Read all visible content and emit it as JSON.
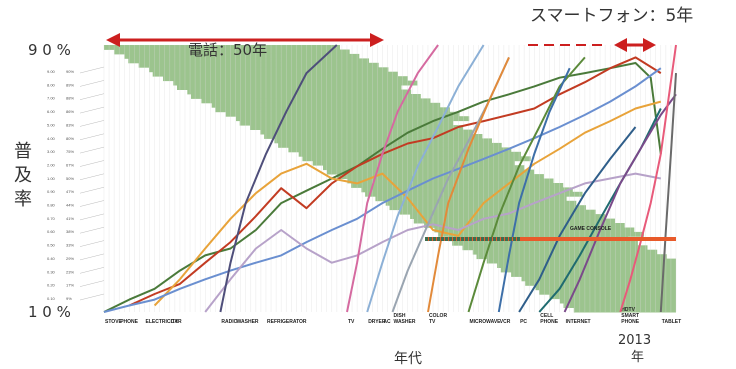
{
  "headline": {
    "smartphone_label": "スマートフォン：5年",
    "phone_label": "電話：50年"
  },
  "axes": {
    "y_title_chars": [
      "普",
      "及",
      "率"
    ],
    "y_top_label": "9 0 %",
    "y_bottom_label": "1 0 %",
    "x_title": "年代",
    "year_label": "2013",
    "year_suffix": "年"
  },
  "colors": {
    "band": "#9cc48e",
    "arrow": "#cc1f1f",
    "grid": "#d9d9d9"
  },
  "chart_data": {
    "type": "line",
    "title": "",
    "xlabel": "年代",
    "ylabel": "普及率",
    "y_scale": "logit",
    "ylim": [
      10,
      90
    ],
    "left_scale_ticks": [
      "9.00",
      "8.00",
      "7.00",
      "6.00",
      "5.00",
      "4.00",
      "3.00",
      "2.00",
      "1.00",
      "0.90",
      "0.80",
      "0.70",
      "0.60",
      "0.50",
      "0.40",
      "0.30",
      "0.20",
      "0.10"
    ],
    "right_scale_ticks": [
      "90%",
      "89%",
      "88%",
      "86%",
      "83%",
      "80%",
      "75%",
      "67%",
      "50%",
      "47%",
      "44%",
      "41%",
      "38%",
      "33%",
      "29%",
      "23%",
      "17%",
      "9%"
    ],
    "categories": [
      {
        "label": "STOVE",
        "year": 1900
      },
      {
        "label": "PHONE",
        "year": 1903
      },
      {
        "label": "ELECTRICITY",
        "year": 1908
      },
      {
        "label": "CAR",
        "year": 1913
      },
      {
        "label": "RADIO",
        "year": 1923
      },
      {
        "label": "WASHER",
        "year": 1926
      },
      {
        "label": "REFRIGERATOR",
        "year": 1932
      },
      {
        "label": "TV",
        "year": 1948
      },
      {
        "label": "DRYER",
        "year": 1952
      },
      {
        "label": "AC",
        "year": 1955
      },
      {
        "label": "DISH WASHER",
        "year": 1957
      },
      {
        "label": "COLOR TV",
        "year": 1964
      },
      {
        "label": "MICROWAVE",
        "year": 1972
      },
      {
        "label": "VCR",
        "year": 1978
      },
      {
        "label": "PC",
        "year": 1982
      },
      {
        "label": "CELL PHONE",
        "year": 1986
      },
      {
        "label": "INTERNET",
        "year": 1991
      },
      {
        "label": "HDTV SMART PHONE",
        "year": 2002
      },
      {
        "label": "TABLET",
        "year": 2010
      },
      {
        "label": "GAME CONSOLE",
        "year": 1994
      }
    ],
    "annotations": [
      {
        "text": "電話：50年",
        "from_year": 1900,
        "to_year": 1950
      },
      {
        "text": "スマートフォン：5年",
        "from_year": 2008,
        "to_year": 2013
      }
    ],
    "series": [
      {
        "color": "#4a7a3a",
        "x": [
          1900,
          1905,
          1910,
          1915,
          1920,
          1925,
          1930,
          1935,
          1940,
          1945,
          1950,
          1955,
          1960,
          1965,
          1970,
          1975,
          1980,
          1985,
          1990,
          1995,
          2000,
          2005,
          2008,
          2010
        ],
        "y": [
          10,
          12,
          14,
          18,
          22,
          24,
          30,
          40,
          45,
          50,
          55,
          62,
          68,
          72,
          75,
          78,
          80,
          82,
          84,
          85,
          86,
          87,
          84,
          60
        ]
      },
      {
        "color": "#c23b22",
        "x": [
          1905,
          1910,
          1915,
          1920,
          1925,
          1930,
          1935,
          1940,
          1945,
          1950,
          1955,
          1960,
          1965,
          1970,
          1975,
          1980,
          1985,
          1990,
          1995,
          2000,
          2005,
          2010
        ],
        "y": [
          11,
          13,
          15,
          20,
          26,
          35,
          46,
          38,
          48,
          55,
          60,
          64,
          66,
          70,
          72,
          74,
          76,
          80,
          83,
          86,
          88,
          85
        ]
      },
      {
        "color": "#e8a33a",
        "x": [
          1910,
          1915,
          1920,
          1925,
          1930,
          1935,
          1940,
          1945,
          1950,
          1955,
          1960,
          1965,
          1970,
          1975,
          1980,
          1985,
          1990,
          1995,
          2000,
          2005,
          2010
        ],
        "y": [
          11,
          16,
          24,
          34,
          44,
          52,
          56,
          50,
          48,
          52,
          42,
          30,
          28,
          40,
          48,
          56,
          62,
          68,
          72,
          76,
          78
        ]
      },
      {
        "color": "#6a8fd0",
        "x": [
          1900,
          1905,
          1910,
          1915,
          1920,
          1925,
          1930,
          1935,
          1940,
          1945,
          1950,
          1955,
          1960,
          1965,
          1970,
          1975,
          1980,
          1985,
          1990,
          1995,
          2000,
          2005,
          2010
        ],
        "y": [
          10,
          11,
          12,
          14,
          16,
          18,
          20,
          22,
          26,
          30,
          34,
          40,
          45,
          50,
          54,
          58,
          62,
          66,
          70,
          74,
          78,
          82,
          86
        ]
      },
      {
        "color": "#b7a2c9",
        "x": [
          1920,
          1925,
          1930,
          1935,
          1940,
          1945,
          1950,
          1955,
          1960,
          1965,
          1970,
          1975,
          1980,
          1985,
          1990,
          1995,
          2000,
          2005,
          2010
        ],
        "y": [
          10,
          16,
          24,
          30,
          24,
          20,
          22,
          26,
          30,
          32,
          30,
          34,
          36,
          40,
          44,
          48,
          50,
          52,
          50
        ]
      },
      {
        "color": "#4e4e7a",
        "x": [
          1923,
          1925,
          1928,
          1932,
          1936,
          1940,
          1946
        ],
        "y": [
          10,
          20,
          40,
          60,
          75,
          85,
          90
        ]
      },
      {
        "color": "#d56aa0",
        "x": [
          1948,
          1950,
          1952,
          1955,
          1958,
          1962,
          1966
        ],
        "y": [
          10,
          20,
          40,
          60,
          75,
          85,
          90
        ]
      },
      {
        "color": "#8cb0d6",
        "x": [
          1952,
          1955,
          1958,
          1962,
          1966,
          1970,
          1975
        ],
        "y": [
          10,
          20,
          35,
          55,
          70,
          82,
          90
        ]
      },
      {
        "color": "#9aa5b1",
        "x": [
          1957,
          1960,
          1964,
          1968,
          1972,
          1976,
          1980
        ],
        "y": [
          10,
          18,
          32,
          50,
          65,
          78,
          88
        ]
      },
      {
        "color": "#e28a3a",
        "x": [
          1964,
          1966,
          1968,
          1972,
          1976,
          1980
        ],
        "y": [
          10,
          22,
          40,
          62,
          78,
          88
        ]
      },
      {
        "color": "#5b8a3a",
        "x": [
          1972,
          1975,
          1978,
          1982,
          1986,
          1990,
          1995
        ],
        "y": [
          10,
          20,
          35,
          55,
          70,
          82,
          88
        ]
      },
      {
        "color": "#3d6fa8",
        "x": [
          1978,
          1980,
          1982,
          1985,
          1988,
          1992
        ],
        "y": [
          10,
          22,
          40,
          60,
          75,
          86
        ]
      },
      {
        "color": "#2f5e8a",
        "x": [
          1982,
          1986,
          1990,
          1995,
          2000,
          2005
        ],
        "y": [
          10,
          16,
          28,
          44,
          58,
          70
        ]
      },
      {
        "color": "#1f6b70",
        "x": [
          1986,
          1990,
          1994,
          1998,
          2002,
          2006,
          2010
        ],
        "y": [
          10,
          14,
          22,
          34,
          48,
          62,
          76
        ]
      },
      {
        "color": "#7a4a8a",
        "x": [
          1991,
          1994,
          1998,
          2002,
          2006,
          2010,
          2013
        ],
        "y": [
          10,
          16,
          30,
          48,
          62,
          74,
          80
        ]
      },
      {
        "color": "#e85a7a",
        "x": [
          2002,
          2004,
          2006,
          2008,
          2010,
          2013
        ],
        "y": [
          10,
          16,
          26,
          40,
          60,
          90
        ]
      },
      {
        "color": "#6a6a6a",
        "x": [
          2010,
          2011,
          2012,
          2013
        ],
        "y": [
          10,
          30,
          60,
          85
        ]
      }
    ]
  }
}
